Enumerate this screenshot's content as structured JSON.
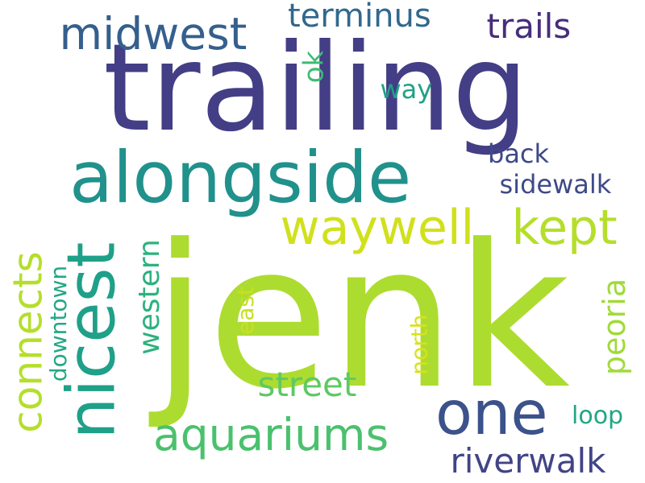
{
  "words": [
    {
      "id": "jenk",
      "text": "jenk",
      "color": "#addc30"
    },
    {
      "id": "trailing",
      "text": "trailing",
      "color": "#433e85"
    },
    {
      "id": "alongside",
      "text": "alongside",
      "color": "#21918c"
    },
    {
      "id": "nicest",
      "text": "nicest",
      "color": "#1fa088"
    },
    {
      "id": "one",
      "text": "one",
      "color": "#3b528b"
    },
    {
      "id": "waywell",
      "text": "waywell",
      "color": "#d0e11c"
    },
    {
      "id": "kept",
      "text": "kept",
      "color": "#b5de2b"
    },
    {
      "id": "midwest",
      "text": "midwest",
      "color": "#355f8d"
    },
    {
      "id": "aquariums",
      "text": "aquariums",
      "color": "#4ac16d"
    },
    {
      "id": "connects",
      "text": "connects",
      "color": "#b5de2b"
    },
    {
      "id": "riverwalk",
      "text": "riverwalk",
      "color": "#414487"
    },
    {
      "id": "terminus",
      "text": "terminus",
      "color": "#31688e"
    },
    {
      "id": "trails",
      "text": "trails",
      "color": "#472d7b"
    },
    {
      "id": "street",
      "text": "street",
      "color": "#5ec962"
    },
    {
      "id": "western",
      "text": "western",
      "color": "#2db27d"
    },
    {
      "id": "peoria",
      "text": "peoria",
      "color": "#a0da39"
    },
    {
      "id": "sidewalk",
      "text": "sidewalk",
      "color": "#3e4a89"
    },
    {
      "id": "back",
      "text": "back",
      "color": "#3e4989"
    },
    {
      "id": "ok",
      "text": "ok",
      "color": "#3dbc74"
    },
    {
      "id": "way",
      "text": "way",
      "color": "#1fa187"
    },
    {
      "id": "downtown",
      "text": "downtown",
      "color": "#22a884"
    },
    {
      "id": "north",
      "text": "north",
      "color": "#d8e219"
    },
    {
      "id": "east",
      "text": "east",
      "color": "#c8e020"
    },
    {
      "id": "loop",
      "text": "loop",
      "color": "#21a685"
    }
  ]
}
